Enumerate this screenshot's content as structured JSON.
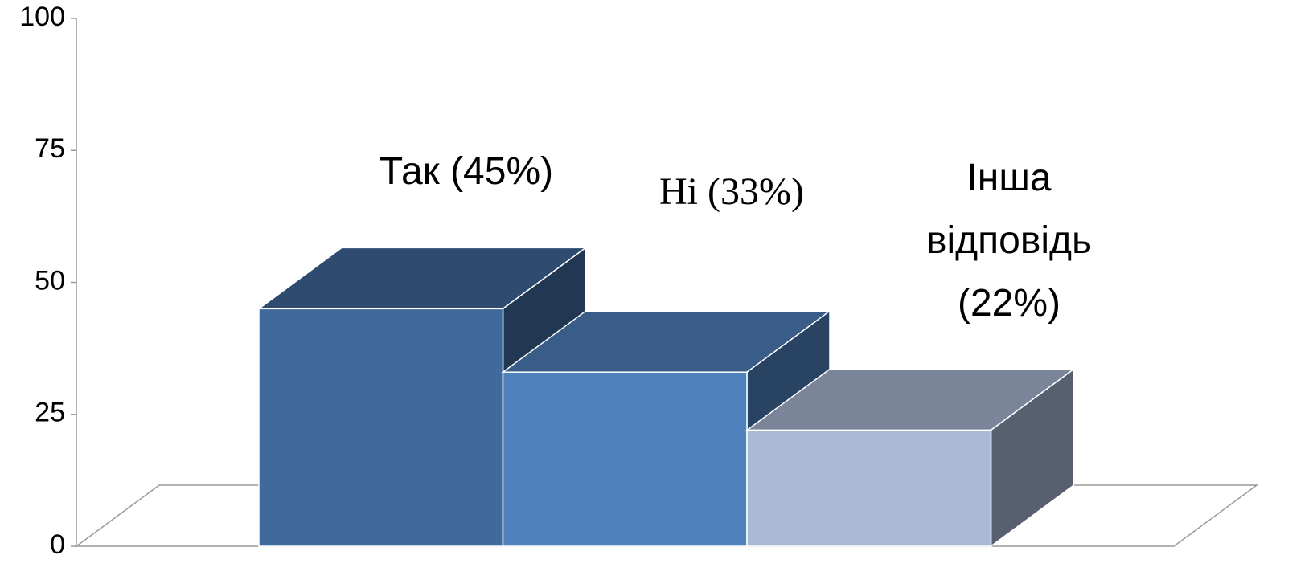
{
  "chart_data": {
    "type": "bar3d",
    "values": [
      45,
      33,
      22
    ],
    "value_labels": [
      "Так (45%)",
      "Ні (33%)",
      "Інша відповідь (22%)"
    ],
    "colors": [
      "#416a9c",
      "#4f81bd",
      "#a9b9d6"
    ],
    "ylim": [
      0,
      100
    ],
    "yticks": [
      0,
      25,
      50,
      75,
      100
    ]
  }
}
